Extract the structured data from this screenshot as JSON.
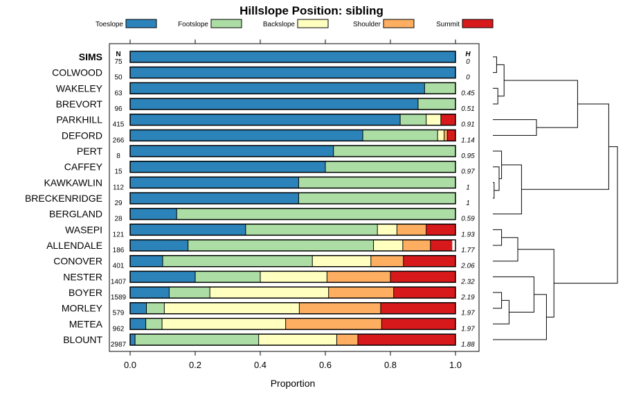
{
  "chart_data": {
    "type": "bar",
    "orientation": "horizontal",
    "stacked": true,
    "title": "Hillslope Position: sibling",
    "xlabel": "Proportion",
    "xlim": [
      0,
      1
    ],
    "xticks": [
      "0.0",
      "0.2",
      "0.4",
      "0.6",
      "0.8",
      "1.0"
    ],
    "n_header": "N",
    "h_header": "H",
    "legend": [
      {
        "name": "Toeslope",
        "color": "#2b83ba"
      },
      {
        "name": "Footslope",
        "color": "#abdda4"
      },
      {
        "name": "Backslope",
        "color": "#ffffbf"
      },
      {
        "name": "Shoulder",
        "color": "#fdae61"
      },
      {
        "name": "Summit",
        "color": "#d7191c"
      }
    ],
    "rows": [
      {
        "name": "SIMS",
        "bold": true,
        "n": "75",
        "h": "0",
        "values": [
          1.0,
          0,
          0,
          0,
          0
        ]
      },
      {
        "name": "COLWOOD",
        "n": "50",
        "h": "0",
        "values": [
          1.0,
          0,
          0,
          0,
          0
        ]
      },
      {
        "name": "WAKELEY",
        "n": "63",
        "h": "0.45",
        "values": [
          0.905,
          0.095,
          0,
          0,
          0
        ]
      },
      {
        "name": "BREVORT",
        "n": "96",
        "h": "0.51",
        "values": [
          0.885,
          0.115,
          0,
          0,
          0
        ]
      },
      {
        "name": "PARKHILL",
        "n": "415",
        "h": "0.91",
        "values": [
          0.83,
          0.08,
          0.045,
          0,
          0.045
        ]
      },
      {
        "name": "DEFORD",
        "n": "266",
        "h": "1.14",
        "values": [
          0.715,
          0.23,
          0.02,
          0.01,
          0.025
        ]
      },
      {
        "name": "PERT",
        "n": "8",
        "h": "0.95",
        "values": [
          0.625,
          0.375,
          0,
          0,
          0
        ]
      },
      {
        "name": "CAFFEY",
        "n": "15",
        "h": "0.97",
        "values": [
          0.6,
          0.4,
          0,
          0,
          0
        ]
      },
      {
        "name": "KAWKAWLIN",
        "n": "112",
        "h": "1",
        "values": [
          0.518,
          0.482,
          0,
          0,
          0
        ]
      },
      {
        "name": "BRECKENRIDGE",
        "n": "29",
        "h": "1",
        "values": [
          0.518,
          0.482,
          0,
          0,
          0
        ]
      },
      {
        "name": "BERGLAND",
        "n": "28",
        "h": "0.59",
        "values": [
          0.143,
          0.857,
          0,
          0,
          0
        ]
      },
      {
        "name": "WASEPI",
        "n": "121",
        "h": "1.93",
        "values": [
          0.355,
          0.405,
          0.06,
          0.09,
          0.09
        ]
      },
      {
        "name": "ALLENDALE",
        "n": "186",
        "h": "1.77",
        "values": [
          0.178,
          0.57,
          0.09,
          0.085,
          0.067
        ]
      },
      {
        "name": "CONOVER",
        "n": "401",
        "h": "2.06",
        "values": [
          0.1,
          0.46,
          0.18,
          0.1,
          0.16
        ]
      },
      {
        "name": "NESTER",
        "n": "1407",
        "h": "2.32",
        "values": [
          0.2,
          0.2,
          0.205,
          0.195,
          0.2
        ]
      },
      {
        "name": "BOYER",
        "n": "1589",
        "h": "2.19",
        "values": [
          0.12,
          0.125,
          0.365,
          0.2,
          0.19
        ]
      },
      {
        "name": "MORLEY",
        "n": "579",
        "h": "1.97",
        "values": [
          0.05,
          0.055,
          0.415,
          0.25,
          0.23
        ]
      },
      {
        "name": "METEA",
        "n": "962",
        "h": "1.97",
        "values": [
          0.048,
          0.05,
          0.38,
          0.295,
          0.227
        ]
      },
      {
        "name": "BLOUNT",
        "n": "2987",
        "h": "1.88",
        "values": [
          0.015,
          0.38,
          0.24,
          0.065,
          0.3
        ]
      }
    ],
    "dendrogram": {
      "description": "hierarchical clustering of soil series, leaves in row order",
      "merges": [
        [
          0,
          1,
          0.03
        ],
        [
          2,
          3,
          0.04
        ],
        [
          -1,
          -2,
          0.09
        ],
        [
          4,
          5,
          0.35
        ],
        [
          -4,
          -3,
          0.68
        ],
        [
          8,
          9,
          0.01
        ],
        [
          7,
          -6,
          0.05
        ],
        [
          6,
          -7,
          0.07
        ],
        [
          -8,
          10,
          0.23
        ],
        [
          -5,
          -9,
          0.93
        ],
        [
          11,
          12,
          0.07
        ],
        [
          -11,
          13,
          0.2
        ],
        [
          15,
          16,
          0.07
        ],
        [
          -13,
          17,
          0.13
        ],
        [
          14,
          -14,
          0.33
        ],
        [
          -15,
          18,
          0.43
        ],
        [
          -12,
          -16,
          0.49
        ],
        [
          -10,
          -17,
          1.0
        ]
      ]
    }
  }
}
